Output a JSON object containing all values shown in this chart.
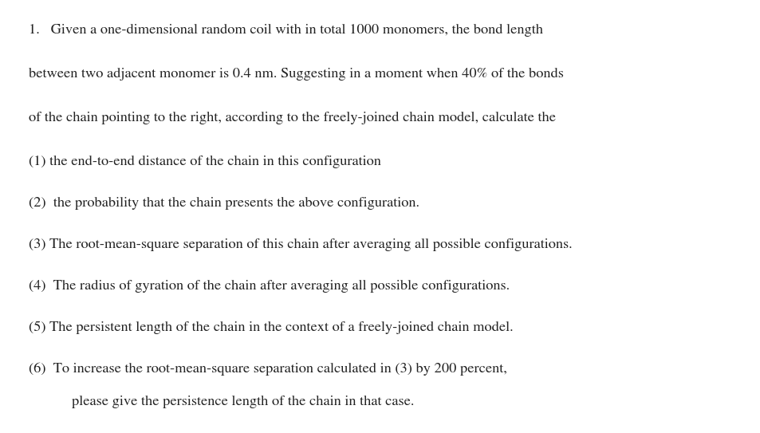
{
  "background_color": "#ffffff",
  "figsize": [
    9.54,
    5.43
  ],
  "dpi": 100,
  "lines": [
    {
      "xpx": 36,
      "ypx": 30,
      "text": "1.   Given a one-dimensional random coil with in total 1000 monomers, the bond length"
    },
    {
      "xpx": 36,
      "ypx": 85,
      "text": "between two adjacent monomer is 0.4 nm. Suggesting in a moment when 40% of the bonds"
    },
    {
      "xpx": 36,
      "ypx": 140,
      "text": "of the chain pointing to the right, according to the freely-joined chain model, calculate the"
    },
    {
      "xpx": 36,
      "ypx": 195,
      "text": "(1) the end-to-end distance of the chain in this configuration"
    },
    {
      "xpx": 36,
      "ypx": 247,
      "text": "(2)  the probability that the chain presents the above configuration."
    },
    {
      "xpx": 36,
      "ypx": 299,
      "text": "(3) The root-mean-square separation of this chain after averaging all possible configurations."
    },
    {
      "xpx": 36,
      "ypx": 351,
      "text": "(4)  The radius of gyration of the chain after averaging all possible configurations."
    },
    {
      "xpx": 36,
      "ypx": 403,
      "text": "(5) The persistent length of the chain in the context of a freely-joined chain model."
    },
    {
      "xpx": 36,
      "ypx": 455,
      "text": "(6)  To increase the root-mean-square separation calculated in (3) by 200 percent,"
    },
    {
      "xpx": 90,
      "ypx": 496,
      "text": "please give the persistence length of the chain in that case."
    }
  ],
  "fontsize": 13.2,
  "font_family": "STIXGeneral",
  "text_color": "#222222"
}
